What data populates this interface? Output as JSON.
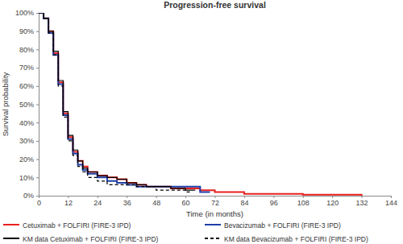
{
  "chart_data": {
    "type": "line",
    "title": "Progression-free survival",
    "x_label": "Time (in months)",
    "y_label": "Survival probability",
    "xlim": [
      0,
      144
    ],
    "xticks": [
      0,
      12,
      24,
      36,
      48,
      60,
      72,
      84,
      96,
      108,
      120,
      132,
      144
    ],
    "ylim": [
      0,
      100
    ],
    "yticks": [
      {
        "value": 0,
        "label": "0%"
      },
      {
        "value": 10,
        "label": "10%"
      },
      {
        "value": 20,
        "label": "20%"
      },
      {
        "value": 30,
        "label": "30%"
      },
      {
        "value": 40,
        "label": "40%"
      },
      {
        "value": 50,
        "label": "50%"
      },
      {
        "value": 60,
        "label": "60%"
      },
      {
        "value": 70,
        "label": "70%"
      },
      {
        "value": 80,
        "label": "80%"
      },
      {
        "value": 90,
        "label": "90%"
      },
      {
        "value": 100,
        "label": "100%"
      }
    ],
    "grid": false,
    "legend": "bottom",
    "series": [
      {
        "name": "Cetuximab + FOLFIRI (FIRE-3 IPD)",
        "color": "#e8201e",
        "line_style": "solid",
        "x": [
          0,
          2,
          4,
          6,
          8,
          10,
          12,
          14,
          16,
          18,
          20,
          24,
          28,
          32,
          36,
          40,
          44,
          48,
          54,
          60,
          66,
          72,
          84,
          96,
          108,
          120,
          132
        ],
        "values": [
          100,
          97,
          90,
          78,
          62,
          45,
          32,
          24,
          19,
          16,
          13,
          11,
          10,
          9,
          7,
          6,
          5,
          5,
          4,
          4,
          3,
          2,
          1,
          1,
          0.5,
          0.5,
          0
        ]
      },
      {
        "name": "Bevacizumab + FOLFIRI (FIRE-3 IPD)",
        "color": "#1f3fa8",
        "line_style": "solid",
        "x": [
          0,
          2,
          4,
          6,
          8,
          10,
          12,
          14,
          16,
          18,
          20,
          24,
          28,
          32,
          36,
          40,
          44,
          48,
          54,
          60,
          66,
          70
        ],
        "values": [
          100,
          97,
          89,
          77,
          61,
          44,
          31,
          23,
          17,
          14,
          12,
          10,
          8,
          7,
          6,
          5,
          5,
          5,
          5,
          5,
          2,
          2
        ]
      },
      {
        "name": "KM data Cetuximab + FOLFIRI (FIRE-3 IPD)",
        "color": "#000000",
        "line_style": "solid",
        "x": [
          0,
          2,
          4,
          6,
          8,
          10,
          12,
          14,
          16,
          18,
          20,
          24,
          28,
          32,
          36,
          40,
          44,
          48,
          54,
          60,
          64
        ],
        "values": [
          100,
          97,
          90,
          79,
          63,
          46,
          33,
          25,
          19,
          15,
          13,
          11,
          10,
          9,
          7,
          6,
          5,
          5,
          4,
          3,
          3
        ]
      },
      {
        "name": "KM data Bevacizumab + FOLFIRI (FIRE-3 IPD)",
        "color": "#000000",
        "line_style": "dashed",
        "x": [
          0,
          2,
          4,
          6,
          8,
          10,
          12,
          14,
          16,
          18,
          20,
          24,
          28,
          32,
          36,
          40,
          44,
          48,
          54,
          60,
          62
        ],
        "values": [
          100,
          97,
          89,
          77,
          60,
          43,
          30,
          22,
          16,
          13,
          10,
          8,
          6,
          6,
          6,
          5,
          5,
          3,
          3,
          2,
          2
        ]
      }
    ]
  }
}
